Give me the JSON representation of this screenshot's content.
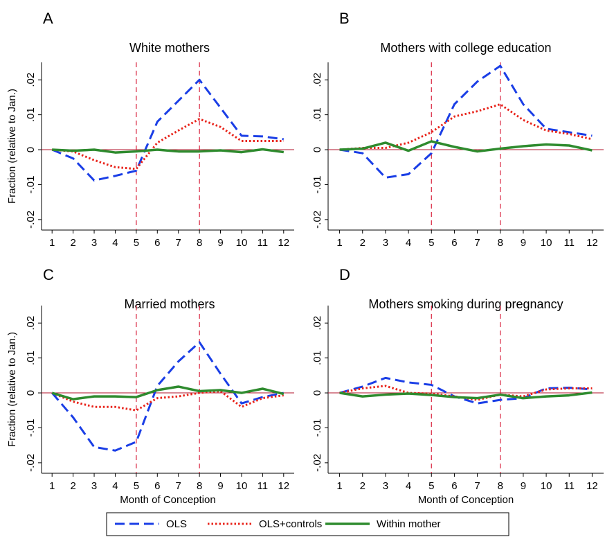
{
  "chart_data": [
    {
      "type": "line",
      "panel": "A",
      "title": "White mothers",
      "y_label": "Fraction (relative to Jan.)",
      "x": [
        1,
        2,
        3,
        4,
        5,
        6,
        7,
        8,
        9,
        10,
        11,
        12
      ],
      "xlim": [
        0.5,
        12.5
      ],
      "xticks": [
        1,
        2,
        3,
        4,
        5,
        6,
        7,
        8,
        9,
        10,
        11,
        12
      ],
      "ylim": [
        -0.023,
        0.025
      ],
      "yticks": [
        {
          "value": -0.02,
          "label": "-.02"
        },
        {
          "value": -0.01,
          "label": "-.01"
        },
        0,
        {
          "value": 0.01,
          "label": ".01"
        },
        {
          "value": 0.02,
          "label": ".02"
        }
      ],
      "vlines": [
        5,
        8
      ],
      "hline": 0,
      "series": [
        {
          "name": "OLS",
          "color": "#1a3ee6",
          "dash": "dashed",
          "values": [
            0,
            -0.0025,
            -0.0088,
            -0.0075,
            -0.006,
            0.008,
            0.014,
            0.02,
            0.012,
            0.004,
            0.0038,
            0.003
          ]
        },
        {
          "name": "OLS+controls",
          "color": "#e8231a",
          "dash": "dotted",
          "values": [
            0,
            -0.0005,
            -0.003,
            -0.005,
            -0.0055,
            0.002,
            0.0055,
            0.0088,
            0.0065,
            0.0025,
            0.0025,
            0.0025
          ]
        },
        {
          "name": "Within mother",
          "color": "#2e8b2e",
          "dash": "solid",
          "values": [
            0,
            -0.0003,
            0,
            -0.0008,
            -0.0005,
            0,
            -0.0005,
            -0.0005,
            -0.0002,
            -0.0007,
            0.0001,
            -0.0007
          ]
        }
      ]
    },
    {
      "type": "line",
      "panel": "B",
      "title": "Mothers with college education",
      "x": [
        1,
        2,
        3,
        4,
        5,
        6,
        7,
        8,
        9,
        10,
        11,
        12
      ],
      "xlim": [
        0.5,
        12.5
      ],
      "xticks": [
        1,
        2,
        3,
        4,
        5,
        6,
        7,
        8,
        9,
        10,
        11,
        12
      ],
      "ylim": [
        -0.023,
        0.025
      ],
      "yticks": [
        {
          "value": -0.02,
          "label": "-.02"
        },
        {
          "value": -0.01,
          "label": "-.01"
        },
        0,
        {
          "value": 0.01,
          "label": ".01"
        },
        {
          "value": 0.02,
          "label": ".02"
        }
      ],
      "vlines": [
        5,
        8
      ],
      "hline": 0,
      "series": [
        {
          "color": "#1a3ee6",
          "dash": "dashed",
          "values": [
            0,
            -0.001,
            -0.008,
            -0.007,
            -0.001,
            0.013,
            0.0195,
            0.024,
            0.013,
            0.006,
            0.005,
            0.004
          ]
        },
        {
          "color": "#e8231a",
          "dash": "dotted",
          "values": [
            0,
            0.0005,
            0.0005,
            0.002,
            0.005,
            0.0095,
            0.011,
            0.013,
            0.0085,
            0.0055,
            0.0045,
            0.003
          ]
        },
        {
          "color": "#2e8b2e",
          "dash": "solid",
          "values": [
            0,
            0.0003,
            0.002,
            -0.0003,
            0.0024,
            0.0008,
            -0.0005,
            0.0003,
            0.001,
            0.0015,
            0.0012,
            -0.0002
          ]
        }
      ]
    },
    {
      "type": "line",
      "panel": "C",
      "title": "Married mothers",
      "y_label": "Fraction (relative to Jan.)",
      "x_label": "Month of Conception",
      "x": [
        1,
        2,
        3,
        4,
        5,
        6,
        7,
        8,
        9,
        10,
        11,
        12
      ],
      "xlim": [
        0.5,
        12.5
      ],
      "xticks": [
        1,
        2,
        3,
        4,
        5,
        6,
        7,
        8,
        9,
        10,
        11,
        12
      ],
      "ylim": [
        -0.023,
        0.025
      ],
      "yticks": [
        {
          "value": -0.02,
          "label": "-.02"
        },
        {
          "value": -0.01,
          "label": "-.01"
        },
        0,
        {
          "value": 0.01,
          "label": ".01"
        },
        {
          "value": 0.02,
          "label": ".02"
        }
      ],
      "vlines": [
        5,
        8
      ],
      "hline": 0,
      "series": [
        {
          "color": "#1a3ee6",
          "dash": "dashed",
          "values": [
            0,
            -0.007,
            -0.0155,
            -0.0165,
            -0.014,
            0.002,
            0.009,
            0.0145,
            0.0055,
            -0.003,
            -0.0012,
            0
          ]
        },
        {
          "color": "#e8231a",
          "dash": "dotted",
          "values": [
            0,
            -0.0025,
            -0.004,
            -0.004,
            -0.005,
            -0.0015,
            -0.001,
            0,
            0.0005,
            -0.004,
            -0.0015,
            -0.0007
          ]
        },
        {
          "color": "#2e8b2e",
          "dash": "solid",
          "values": [
            0,
            -0.0018,
            -0.001,
            -0.001,
            -0.0012,
            0.0008,
            0.0018,
            0.0005,
            0.0008,
            0,
            0.0012,
            -0.0003
          ]
        }
      ]
    },
    {
      "type": "line",
      "panel": "D",
      "title": "Mothers smoking during pregnancy",
      "x_label": "Month of Conception",
      "x": [
        1,
        2,
        3,
        4,
        5,
        6,
        7,
        8,
        9,
        10,
        11,
        12
      ],
      "xlim": [
        0.5,
        12.5
      ],
      "xticks": [
        1,
        2,
        3,
        4,
        5,
        6,
        7,
        8,
        9,
        10,
        11,
        12
      ],
      "ylim": [
        -0.023,
        0.025
      ],
      "yticks": [
        {
          "value": -0.02,
          "label": "-.02"
        },
        {
          "value": -0.01,
          "label": "-.01"
        },
        0,
        {
          "value": 0.01,
          "label": ".01"
        },
        {
          "value": 0.02,
          "label": ".02"
        }
      ],
      "vlines": [
        5,
        8
      ],
      "hline": 0,
      "series": [
        {
          "color": "#1a3ee6",
          "dash": "dashed",
          "values": [
            0,
            0.0018,
            0.0043,
            0.003,
            0.0023,
            -0.001,
            -0.003,
            -0.002,
            -0.0015,
            0.0013,
            0.0015,
            0.001
          ]
        },
        {
          "color": "#e8231a",
          "dash": "dotted",
          "values": [
            0,
            0.0013,
            0.002,
            0,
            -0.0002,
            -0.001,
            -0.002,
            -0.0005,
            -0.001,
            0.001,
            0.0013,
            0.0013
          ]
        },
        {
          "color": "#2e8b2e",
          "dash": "solid",
          "values": [
            0,
            -0.001,
            -0.0005,
            -0.0002,
            -0.0006,
            -0.0012,
            -0.0015,
            -0.0005,
            -0.0015,
            -0.001,
            -0.0007,
            0.0001
          ]
        }
      ]
    }
  ]
}
